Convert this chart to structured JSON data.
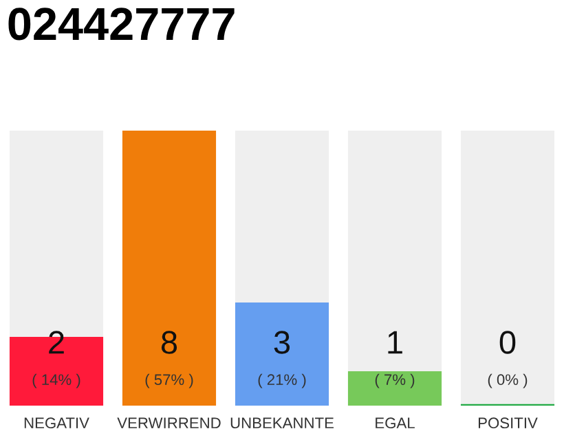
{
  "chart_data": {
    "type": "bar",
    "title": "024427777",
    "categories": [
      "NEGATIV",
      "VERWIRREND",
      "UNBEKANNTE",
      "EGAL",
      "POSITIV"
    ],
    "values": [
      2,
      8,
      3,
      1,
      0
    ],
    "colors": [
      "#ff1a3a",
      "#f07d0a",
      "#659ef0",
      "#77c95a",
      "#22aa44"
    ],
    "grid": false,
    "legend": false,
    "value_labels": [
      "2",
      "8",
      "3",
      "1",
      "0"
    ],
    "annotations": [
      "( 14% )",
      "( 57% )",
      "( 21% )",
      "( 7% )",
      "( 0% )"
    ]
  }
}
